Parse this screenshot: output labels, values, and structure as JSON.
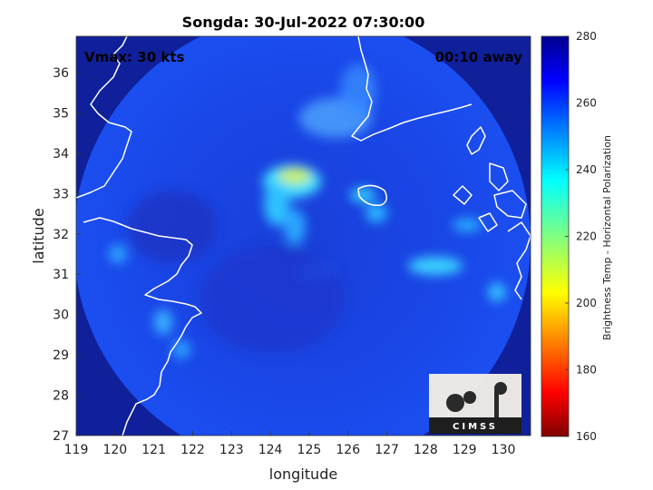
{
  "chart_data": {
    "type": "heatmap",
    "title": "Songda: 30-Jul-2022 07:30:00",
    "xlabel": "longitude",
    "ylabel": "latitude",
    "xlim": [
      119,
      130.7
    ],
    "ylim": [
      27,
      36.9
    ],
    "xticks": [
      119,
      120,
      121,
      122,
      123,
      124,
      125,
      126,
      127,
      128,
      129,
      130
    ],
    "yticks": [
      27,
      28,
      29,
      30,
      31,
      32,
      33,
      34,
      35,
      36
    ],
    "annotations": {
      "left": "Vmax: 30 kts",
      "right": "00:10 away"
    },
    "colorbar": {
      "label": "Brightness Temp - Horizontal Polarization",
      "min": 160,
      "max": 280,
      "ticks": [
        160,
        180,
        200,
        220,
        240,
        260,
        280
      ],
      "colormap": "jet"
    },
    "swath": {
      "center_lon": 125.0,
      "center_lat": 31.9,
      "coverage": "circular"
    },
    "features": [
      {
        "name": "yellow band",
        "lon": 124.8,
        "lat": 33.4,
        "value": 228
      },
      {
        "name": "north arc",
        "lon": 125.7,
        "lat": 34.5,
        "value": 245
      },
      {
        "name": "eastern band",
        "lon": 128.9,
        "lat": 31.2,
        "value": 242
      },
      {
        "name": "southeastern cell",
        "lon": 130.2,
        "lat": 30.5,
        "value": 240
      },
      {
        "name": "western cells",
        "lon": 120.5,
        "lat": 30.2,
        "value": 250
      }
    ],
    "grid": false,
    "legend": "colorbar-right",
    "logo": "CIMSS"
  }
}
